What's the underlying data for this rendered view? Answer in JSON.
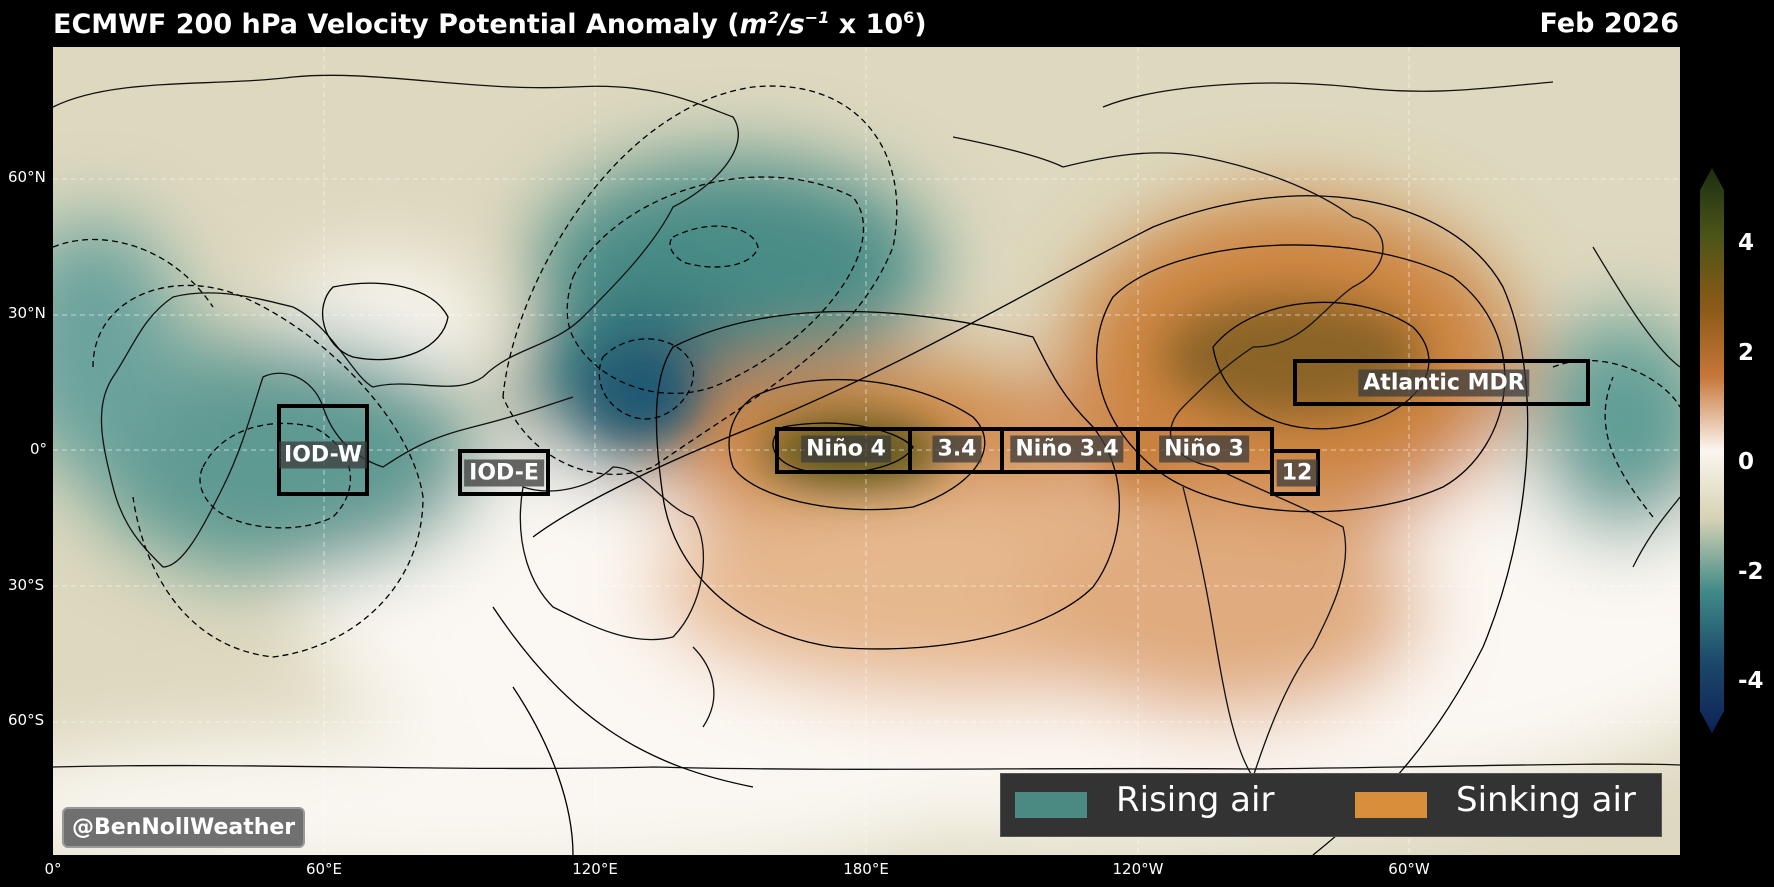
{
  "header": {
    "title_prefix": "ECMWF 200 hPa Velocity Potential Anomaly (",
    "title_m": "m",
    "title_exp2": "2",
    "title_s": "/s",
    "title_expm1": "−1",
    "title_mid": " x 10",
    "title_exp6": "6",
    "title_suffix": ")",
    "date": "Feb 2026"
  },
  "axes": {
    "y_ticks": [
      "60°N",
      "30°N",
      "0°",
      "30°S",
      "60°S"
    ],
    "x_ticks": [
      "0°",
      "60°E",
      "120°E",
      "180°E",
      "120°W",
      "60°W"
    ]
  },
  "colorbar": {
    "labels": [
      "4",
      "2",
      "0",
      "-2",
      "-4"
    ],
    "colors_top_to_bottom": [
      "#1b2e12",
      "#4c5418",
      "#8c5a18",
      "#c8773a",
      "#fbf6f0",
      "#d6d3b4",
      "#3f8a87",
      "#1d4a6a",
      "#0d2258"
    ]
  },
  "regions": [
    {
      "name": "iod-w",
      "label": "IOD-W"
    },
    {
      "name": "iod-e",
      "label": "IOD-E"
    },
    {
      "name": "nino4",
      "label": "Niño 4"
    },
    {
      "name": "nino34-a",
      "label": "3.4"
    },
    {
      "name": "nino34",
      "label": "Niño 3.4"
    },
    {
      "name": "nino3",
      "label": "Niño 3"
    },
    {
      "name": "nino12",
      "label": "12"
    },
    {
      "name": "atlantic-mdr",
      "label": "Atlantic MDR"
    }
  ],
  "legend": {
    "rising_label": "Rising air",
    "rising_color": "#4a8a83",
    "sinking_label": "Sinking air",
    "sinking_color": "#d98e3c"
  },
  "credit": "@BenNollWeather"
}
